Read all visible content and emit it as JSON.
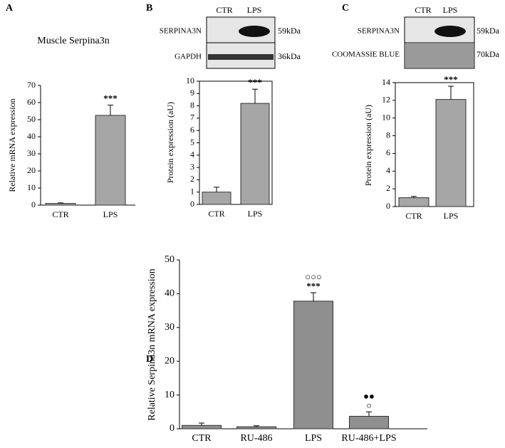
{
  "chart_data": [
    {
      "type": "bar",
      "panel": "A",
      "title": "Muscle Serpina3n",
      "ylabel": "Relative mRNA expression",
      "categories": [
        "CTR",
        "LPS"
      ],
      "values": [
        1,
        52.5
      ],
      "errors": [
        0.3,
        6
      ],
      "color": "#a6a6a6",
      "annotations": [
        [],
        [
          "***"
        ]
      ],
      "ylim": [
        0,
        70
      ],
      "yticks": [
        0,
        10,
        20,
        30,
        40,
        50,
        60,
        70
      ],
      "box": false
    },
    {
      "type": "bar",
      "panel": "B",
      "ylabel": "Protein expression (aU)",
      "categories": [
        "CTR",
        "LPS"
      ],
      "values": [
        1,
        8.2
      ],
      "errors": [
        0.4,
        1.15
      ],
      "color": "#a6a6a6",
      "annotations": [
        [],
        [
          "***"
        ]
      ],
      "ylim": [
        0,
        10
      ],
      "yticks": [
        0,
        1,
        2,
        3,
        4,
        5,
        6,
        7,
        8,
        9,
        10
      ],
      "box": true,
      "blot": {
        "lanes": [
          "CTR",
          "LPS"
        ],
        "rows": [
          {
            "name": "SERPINA3N",
            "size": "59kDa"
          },
          {
            "name": "GAPDH",
            "size": "36kDa"
          }
        ]
      }
    },
    {
      "type": "bar",
      "panel": "C",
      "ylabel": "Protein expression (aU)",
      "categories": [
        "CTR",
        "LPS"
      ],
      "values": [
        1,
        12.1
      ],
      "errors": [
        0.15,
        1.5
      ],
      "color": "#a6a6a6",
      "annotations": [
        [],
        [
          "***"
        ]
      ],
      "ylim": [
        0,
        14
      ],
      "yticks": [
        0,
        2,
        4,
        6,
        8,
        10,
        12,
        14
      ],
      "box": true,
      "blot": {
        "lanes": [
          "CTR",
          "LPS"
        ],
        "rows": [
          {
            "name": "SERPINA3N",
            "size": "59kDa"
          },
          {
            "name": "COOMASSIE BLUE",
            "size": "70kDa"
          }
        ]
      }
    },
    {
      "type": "bar",
      "panel": "D",
      "ylabel": "Relative Serpina3n mRNA expression",
      "categories": [
        "CTR",
        "RU-486",
        "LPS",
        "RU-486+LPS"
      ],
      "values": [
        1,
        0.6,
        37.8,
        3.7
      ],
      "errors": [
        0.7,
        0.3,
        2.5,
        1.3
      ],
      "color": "#8f8f8f",
      "annotations": [
        [],
        [],
        [
          "○○○",
          "***"
        ],
        [
          "●●",
          "○"
        ]
      ],
      "ylim": [
        0,
        50
      ],
      "yticks": [
        0,
        10,
        20,
        30,
        40,
        50
      ],
      "box": false
    }
  ]
}
